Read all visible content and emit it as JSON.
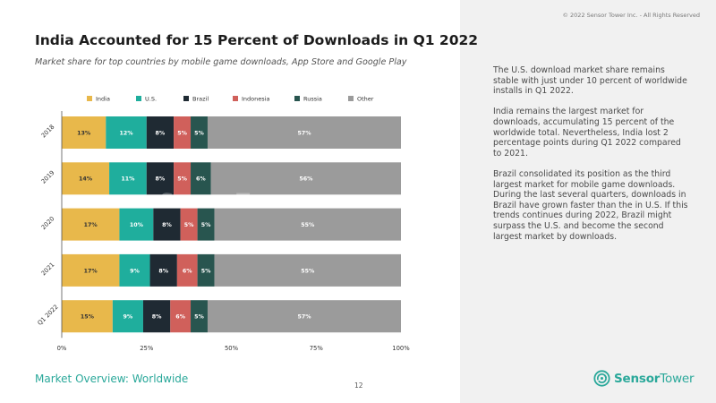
{
  "header": {
    "title": "India Accounted for 15 Percent of Downloads in Q1 2022",
    "subtitle": "Market share for top countries by mobile game downloads, App Store and Google Play",
    "copyright": "© 2022 Sensor Tower Inc. - All Rights Reserved"
  },
  "commentary": [
    "The U.S. download market share remains stable with just under 10 percent of worldwide installs in Q1 2022.",
    "India remains the largest market for downloads, accumulating 15 percent of the worldwide total. Nevertheless, India lost 2 percentage points during Q1 2022 compared to 2021.",
    "Brazil consolidated its position as the third largest market for mobile game downloads. During the last several quarters, downloads in Brazil have grown faster than the in U.S. If this trends continues during 2022, Brazil might surpass the U.S. and become the second largest market by downloads."
  ],
  "footer": {
    "section": "Market Overview: Worldwide",
    "page_number": "12",
    "logo_bold": "Sensor",
    "logo_regular": "Tower"
  },
  "colors": {
    "accent": "#2aa89a"
  },
  "chart_data": {
    "type": "bar",
    "orientation": "horizontal",
    "stacked": true,
    "categories": [
      "2018",
      "2019",
      "2020",
      "2021",
      "Q1 2022"
    ],
    "series": [
      {
        "name": "India",
        "color": "#e8b84b",
        "values": [
          13,
          14,
          17,
          17,
          15
        ],
        "labels": [
          "13%",
          "14%",
          "17%",
          "17%",
          "15%"
        ]
      },
      {
        "name": "U.S.",
        "color": "#1fae9d",
        "values": [
          12,
          11,
          10,
          9,
          9
        ],
        "labels": [
          "12%",
          "11%",
          "10%",
          "9%",
          "9%"
        ]
      },
      {
        "name": "Brazil",
        "color": "#1f2a33",
        "values": [
          8,
          8,
          8,
          8,
          8
        ],
        "labels": [
          "8%",
          "8%",
          "8%",
          "8%",
          "8%"
        ]
      },
      {
        "name": "Indonesia",
        "color": "#d0605b",
        "values": [
          5,
          5,
          5,
          6,
          6
        ],
        "labels": [
          "5%",
          "5%",
          "5%",
          "6%",
          "6%"
        ]
      },
      {
        "name": "Russia",
        "color": "#28554f",
        "values": [
          5,
          6,
          5,
          5,
          5
        ],
        "labels": [
          "5%",
          "6%",
          "5%",
          "5%",
          "5%"
        ]
      },
      {
        "name": "Other",
        "color": "#9b9b9b",
        "values": [
          57,
          56,
          55,
          55,
          57
        ],
        "labels": [
          "57%",
          "56%",
          "55%",
          "55%",
          "57%"
        ]
      }
    ],
    "xticks": [
      "0%",
      "25%",
      "50%",
      "75%",
      "100%"
    ],
    "xlim": [
      0,
      100
    ],
    "legend_position": "top",
    "grid": false,
    "watermark": "SensorTower"
  }
}
